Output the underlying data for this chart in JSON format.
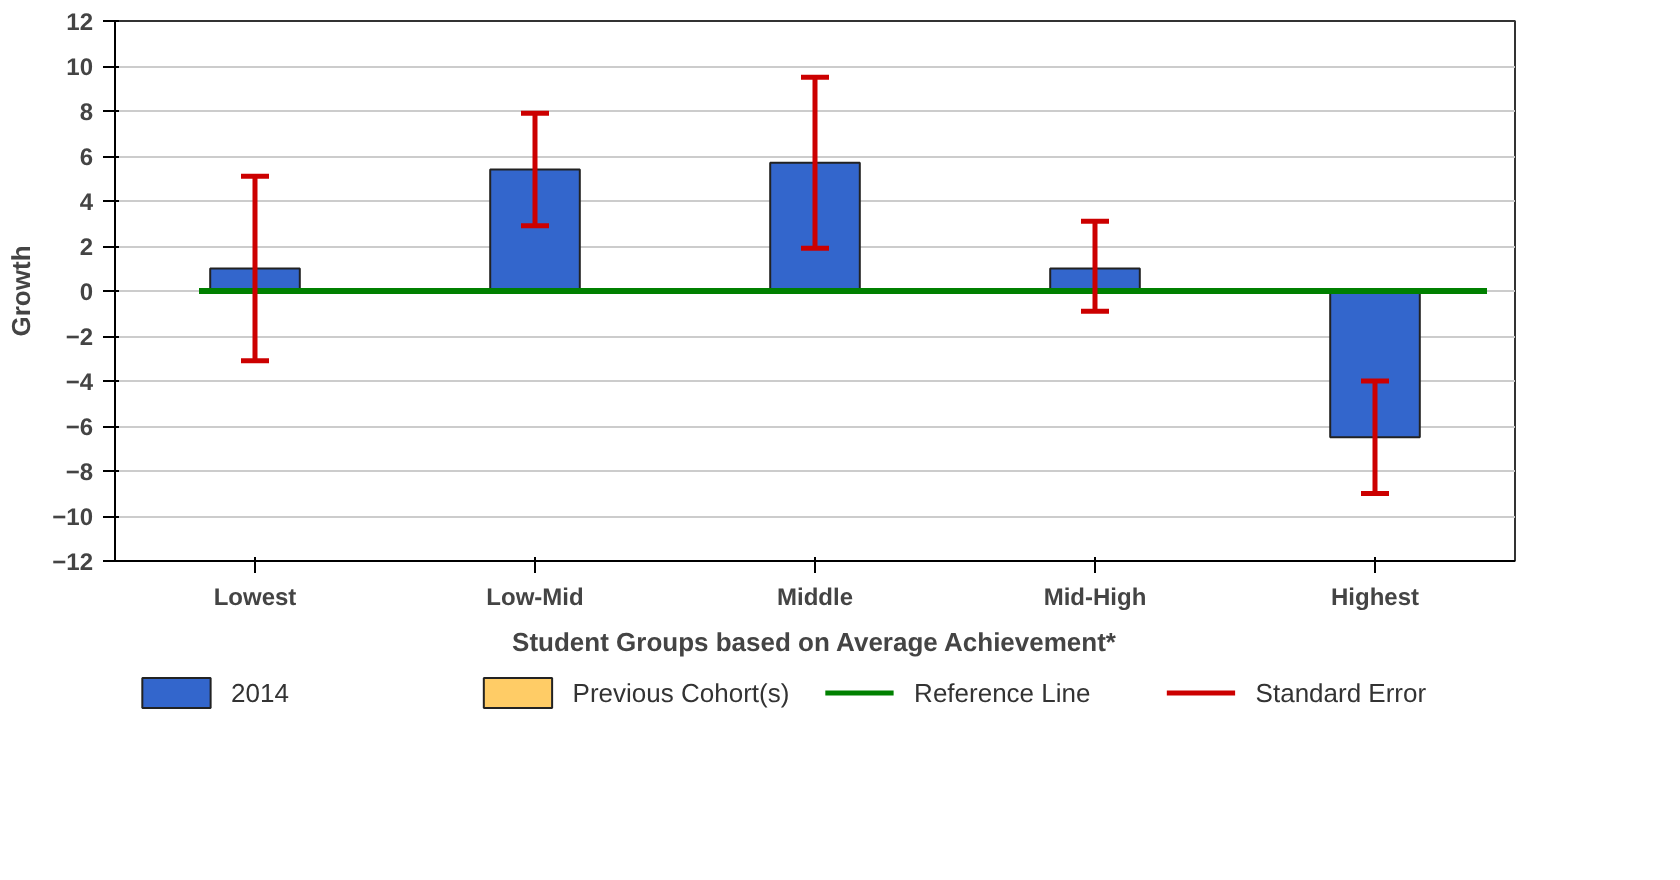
{
  "chart_data": {
    "type": "bar",
    "xlabel": "Student Groups based on Average Achievement*",
    "ylabel": "Growth",
    "categories": [
      "Lowest",
      "Low-Mid",
      "Middle",
      "Mid-High",
      "Highest"
    ],
    "series": [
      {
        "name": "2014",
        "color": "#3366cc",
        "values": [
          1.0,
          5.4,
          5.7,
          1.0,
          -6.5
        ],
        "errors": [
          [
            -3.1,
            5.1
          ],
          [
            2.9,
            7.9
          ],
          [
            1.9,
            9.5
          ],
          [
            -0.9,
            3.1
          ],
          [
            -9.0,
            -4.0
          ]
        ]
      },
      {
        "name": "Previous Cohort(s)",
        "color": "#ffcc66",
        "values": [
          null,
          null,
          null,
          null,
          null
        ]
      }
    ],
    "ref_lines": [
      {
        "axis": "y",
        "value": 0,
        "label": "Reference Line",
        "color": "#008000"
      }
    ],
    "annotations": [
      "Standard Error"
    ],
    "ylim": [
      -12,
      12
    ],
    "yticks": [
      -12,
      -10,
      -8,
      -6,
      -4,
      -2,
      0,
      2,
      4,
      6,
      8,
      10,
      12
    ],
    "grid": "y",
    "legend": "bottom"
  }
}
